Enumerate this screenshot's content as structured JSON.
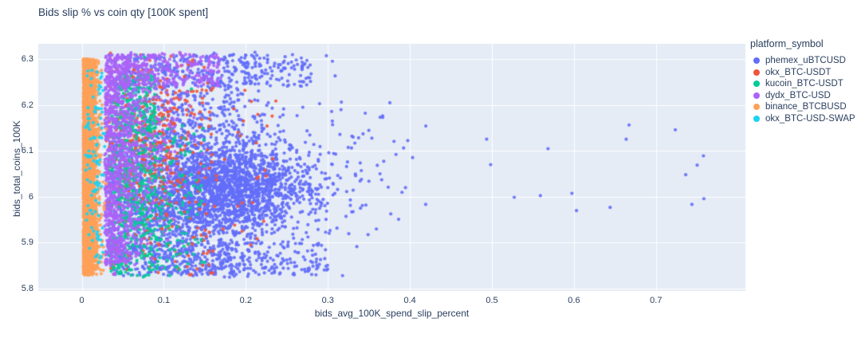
{
  "chart_data": {
    "type": "scatter",
    "title": "Bids slip % vs coin qty [100K spent]",
    "xlabel": "bids_avg_100K_spend_slip_percent",
    "ylabel": "bids_total_coins_100K",
    "x_range": [
      -0.053,
      0.809
    ],
    "y_range": [
      5.795,
      6.333
    ],
    "x_ticks": {
      "values": [
        0,
        0.1,
        0.2,
        0.3,
        0.4,
        0.5,
        0.6,
        0.7
      ],
      "labels": [
        "0",
        "0.1",
        "0.2",
        "0.3",
        "0.4",
        "0.5",
        "0.6",
        "0.7"
      ]
    },
    "y_ticks": {
      "values": [
        5.8,
        5.9,
        6.0,
        6.1,
        6.2,
        6.3
      ],
      "labels": [
        "5.8",
        "5.9",
        "6",
        "6.1",
        "6.2",
        "6.3"
      ]
    },
    "grid": "on",
    "colors": {
      "plot_bg": "#E5ECF6",
      "grid": "#FFFFFF",
      "text": "#2a3f5f"
    },
    "legend": {
      "title": "platform_symbol",
      "position": "right"
    },
    "series": [
      {
        "name": "phemex_uBTCUSD",
        "color": "#636EFA",
        "clusters": [
          {
            "type": "gauss",
            "count": 2200,
            "cx": 0.13,
            "cy": 6.03,
            "sx": 0.06,
            "sy": 0.12,
            "xmin": 0.032
          },
          {
            "type": "gauss",
            "count": 1300,
            "cx": 0.19,
            "cy": 6.02,
            "sx": 0.05,
            "sy": 0.045,
            "xmin": 0.04
          },
          {
            "type": "uniform",
            "count": 300,
            "x": [
              0.04,
              0.28
            ],
            "y": [
              6.24,
              6.31
            ]
          },
          {
            "type": "uniform",
            "count": 260,
            "x": [
              0.04,
              0.3
            ],
            "y": [
              5.83,
              5.9
            ]
          },
          {
            "type": "gauss",
            "count": 70,
            "cx": 0.33,
            "cy": 6.05,
            "sx": 0.05,
            "sy": 0.09,
            "xmin": 0.27
          },
          {
            "type": "uniform",
            "count": 16,
            "x": [
              0.49,
              0.77
            ],
            "y": [
              5.95,
              6.16
            ]
          }
        ]
      },
      {
        "name": "okx_BTC-USDT",
        "color": "#EF553B",
        "clusters": [
          {
            "type": "gauss",
            "count": 320,
            "cx": 0.075,
            "cy": 6.12,
            "sx": 0.035,
            "sy": 0.1,
            "xmin": 0.03
          },
          {
            "type": "uniform",
            "count": 200,
            "x": [
              0.03,
              0.16
            ],
            "y": [
              5.83,
              6.3
            ]
          },
          {
            "type": "uniform",
            "count": 45,
            "x": [
              0.12,
              0.24
            ],
            "y": [
              5.88,
              6.25
            ]
          }
        ]
      },
      {
        "name": "kucoin_BTC-USDT",
        "color": "#00CC96",
        "clusters": [
          {
            "type": "gauss",
            "count": 550,
            "cx": 0.06,
            "cy": 6.0,
            "sx": 0.025,
            "sy": 0.13,
            "xmin": 0.032
          },
          {
            "type": "uniform",
            "count": 160,
            "x": [
              0.04,
              0.09
            ],
            "y": [
              6.14,
              6.27
            ]
          },
          {
            "type": "uniform",
            "count": 110,
            "x": [
              0.07,
              0.15
            ],
            "y": [
              5.84,
              6.15
            ]
          }
        ]
      },
      {
        "name": "dydx_BTC-USD",
        "color": "#AB63FA",
        "clusters": [
          {
            "type": "halfband",
            "count": 900,
            "x0": 0.028,
            "sx": 0.022,
            "y": [
              5.85,
              6.31
            ]
          },
          {
            "type": "uniform",
            "count": 220,
            "x": [
              0.04,
              0.17
            ],
            "y": [
              6.24,
              6.31
            ]
          },
          {
            "type": "gauss",
            "count": 280,
            "cx": 0.07,
            "cy": 6.12,
            "sx": 0.03,
            "sy": 0.12,
            "xmin": 0.028
          }
        ]
      },
      {
        "name": "binance_BTCBUSD",
        "color": "#FFA15A",
        "clusters": [
          {
            "type": "halfband",
            "count": 3200,
            "x0": 0.002,
            "sx": 0.008,
            "y": [
              5.83,
              6.3
            ]
          },
          {
            "type": "uniform",
            "count": 1500,
            "x": [
              0.002,
              0.014
            ],
            "y": [
              5.83,
              6.3
            ]
          }
        ]
      },
      {
        "name": "okx_BTC-USD-SWAP",
        "color": "#19D3F3",
        "clusters": [
          {
            "type": "uniform",
            "count": 110,
            "x": [
              0.004,
              0.028
            ],
            "y": [
              5.85,
              6.28
            ]
          }
        ]
      }
    ]
  }
}
